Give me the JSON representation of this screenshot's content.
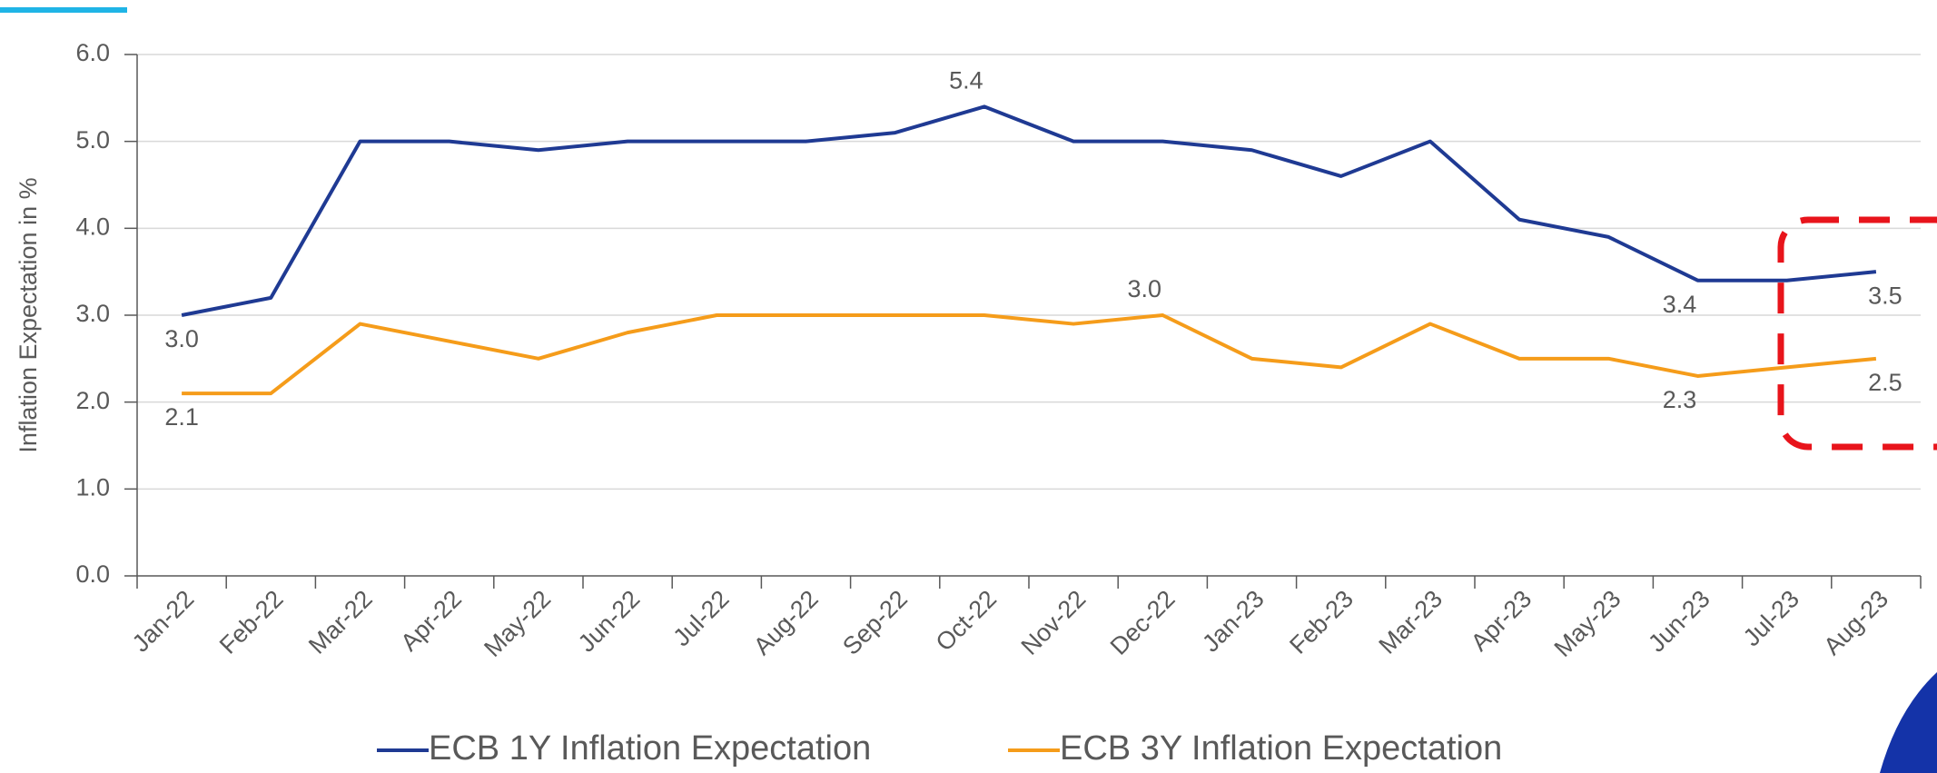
{
  "chart_data": {
    "type": "line",
    "y_label": "Inflation Expectation in %",
    "categories": [
      "Jan-22",
      "Feb-22",
      "Mar-22",
      "Apr-22",
      "May-22",
      "Jun-22",
      "Jul-22",
      "Aug-22",
      "Sep-22",
      "Oct-22",
      "Nov-22",
      "Dec-22",
      "Jan-23",
      "Feb-23",
      "Mar-23",
      "Apr-23",
      "May-23",
      "Jun-23",
      "Jul-23",
      "Aug-23"
    ],
    "series": [
      {
        "name": "ECB 1Y Inflation Expectation",
        "color": "#1f3a93",
        "values": [
          3.0,
          3.2,
          5.0,
          5.0,
          4.9,
          5.0,
          5.0,
          5.0,
          5.1,
          5.4,
          5.0,
          5.0,
          4.9,
          4.6,
          5.0,
          4.1,
          3.9,
          3.4,
          3.4,
          3.5
        ],
        "value_labels": [
          "3.0",
          null,
          null,
          null,
          null,
          null,
          null,
          null,
          null,
          "5.4",
          null,
          null,
          null,
          null,
          null,
          null,
          null,
          "3.4",
          null,
          "3.5"
        ]
      },
      {
        "name": "ECB 3Y Inflation Expectation",
        "color": "#f59c1a",
        "values": [
          2.1,
          2.1,
          2.9,
          2.7,
          2.5,
          2.8,
          3.0,
          3.0,
          3.0,
          3.0,
          2.9,
          3.0,
          2.5,
          2.4,
          2.9,
          2.5,
          2.5,
          2.3,
          2.4,
          2.5
        ],
        "value_labels": [
          "2.1",
          null,
          null,
          null,
          null,
          null,
          null,
          null,
          null,
          null,
          null,
          "3.0",
          null,
          null,
          null,
          null,
          null,
          "2.3",
          null,
          "2.5"
        ]
      }
    ],
    "ylim": [
      0,
      6
    ],
    "yticks": [
      {
        "value": 0,
        "label": "0.0"
      },
      {
        "value": 1,
        "label": "1.0"
      },
      {
        "value": 2,
        "label": "2.0"
      },
      {
        "value": 3,
        "label": "3.0"
      },
      {
        "value": 4,
        "label": "4.0"
      },
      {
        "value": 5,
        "label": "5.0"
      },
      {
        "value": 6,
        "label": "6.0"
      }
    ],
    "grid": true,
    "legend": "bottom"
  }
}
